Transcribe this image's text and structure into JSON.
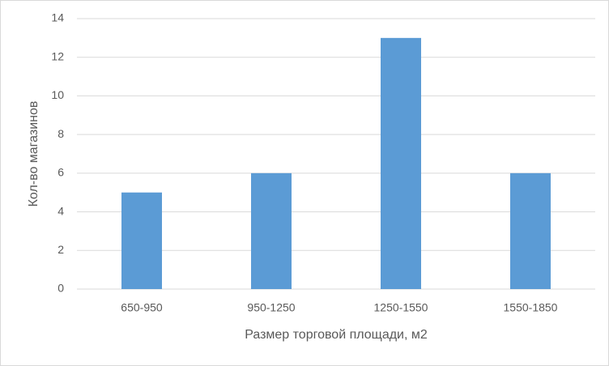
{
  "chart_data": {
    "type": "bar",
    "x_label": "Размер торговой площади, м2",
    "y_label": "Кол-во магазинов",
    "categories": [
      "650-950",
      "950-1250",
      "1250-1550",
      "1550-1850"
    ],
    "values": [
      5,
      6,
      13,
      6
    ],
    "color": "#5b9bd5",
    "ylim": [
      0,
      14
    ],
    "yticks": [
      0,
      2,
      4,
      6,
      8,
      10,
      12,
      14
    ],
    "grid": true
  }
}
